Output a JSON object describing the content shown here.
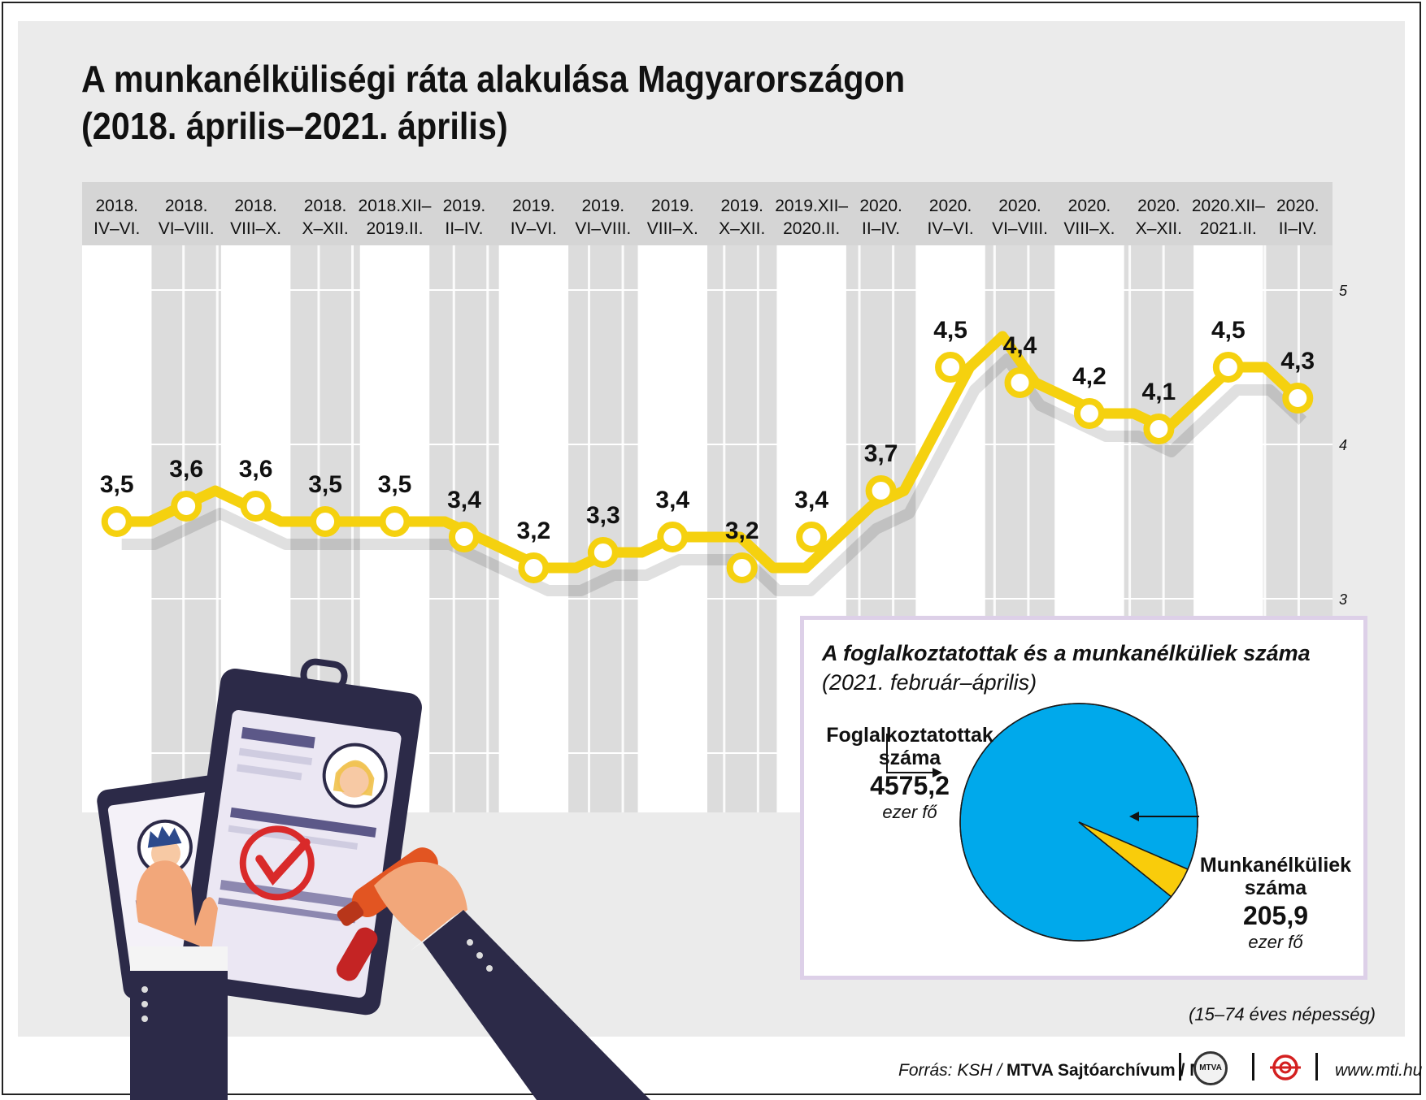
{
  "title": {
    "line1": "A munkanélküliségi ráta alakulása Magyarországon",
    "line2": "(2018. április–2021. április)"
  },
  "chart_data": [
    {
      "type": "line",
      "title": "A munkanélküliségi ráta alakulása Magyarországon (2018. április–2021. április)",
      "categories": [
        [
          "2018.",
          "IV–VI."
        ],
        [
          "2018.",
          "VI–VIII."
        ],
        [
          "2018.",
          "VIII–X."
        ],
        [
          "2018.",
          "X–XII."
        ],
        [
          "2018.XII–",
          "2019.II."
        ],
        [
          "2019.",
          "II–IV."
        ],
        [
          "2019.",
          "IV–VI."
        ],
        [
          "2019.",
          "VI–VIII."
        ],
        [
          "2019.",
          "VIII–X."
        ],
        [
          "2019.",
          "X–XII."
        ],
        [
          "2019.XII–",
          "2020.II."
        ],
        [
          "2020.",
          "II–IV."
        ],
        [
          "2020.",
          "IV–VI."
        ],
        [
          "2020.",
          "VI–VIII."
        ],
        [
          "2020.",
          "VIII–X."
        ],
        [
          "2020.",
          "X–XII."
        ],
        [
          "2020.XII–",
          "2021.II."
        ],
        [
          "2020.",
          "II–IV."
        ]
      ],
      "values": [
        3.5,
        3.6,
        3.6,
        3.5,
        3.5,
        3.4,
        3.2,
        3.3,
        3.4,
        3.2,
        3.4,
        3.7,
        4.5,
        4.4,
        4.2,
        4.1,
        4.5,
        4.3
      ],
      "value_labels": [
        "3,5",
        "3,6",
        "3,6",
        "3,5",
        "3,5",
        "3,4",
        "3,2",
        "3,3",
        "3,4",
        "3,2",
        "3,4",
        "3,7",
        "4,5",
        "4,4",
        "4,2",
        "4,1",
        "4,5",
        "4,3"
      ],
      "monthly_values": [
        3.5,
        3.5,
        3.6,
        3.7,
        3.6,
        3.5,
        3.5,
        3.5,
        3.5,
        3.5,
        3.5,
        3.4,
        3.3,
        3.2,
        3.2,
        3.3,
        3.3,
        3.4,
        3.4,
        3.4,
        3.2,
        3.2,
        3.4,
        3.6,
        3.7,
        4.1,
        4.5,
        4.7,
        4.4,
        4.3,
        4.2,
        4.2,
        4.1,
        4.3,
        4.5,
        4.5,
        4.3
      ],
      "y_ticks": [
        "5",
        "4",
        "3"
      ],
      "ylim": [
        2.3,
        5.1
      ],
      "grid": true,
      "line_color": "#f5d10f",
      "marker_fill": "#ffffff",
      "stripe_color": "#dcdcdc",
      "header_color": "#d5d5d5"
    },
    {
      "type": "pie",
      "title": "A foglalkoztatottak és a munkanélküliek száma",
      "subtitle": "(2021. február–április)",
      "slices": [
        {
          "name": "Foglalkoztatottak száma",
          "value": 4575.2,
          "value_label": "4575,2",
          "unit": "ezer fő",
          "color": "#00a9eb"
        },
        {
          "name": "Munkanélküliek száma",
          "value": 205.9,
          "value_label": "205,9",
          "unit": "ezer fő",
          "color": "#f9cc0b"
        }
      ]
    }
  ],
  "pie_labels": {
    "employed_line1": "Foglalkoztatottak",
    "employed_line2": "száma",
    "employed_value": "4575,2",
    "employed_unit": "ezer fő",
    "unemployed_line1": "Munkanélküliek",
    "unemployed_line2": "száma",
    "unemployed_value": "205,9",
    "unemployed_unit": "ezer fő"
  },
  "note": "(15–74 éves népesség)",
  "footer": {
    "source_prefix": "Forrás: KSH / ",
    "source_bold": "MTVA Sajtóarchívum / MTI",
    "mtva_logo": "MTVA",
    "url": "www.mti.hu"
  },
  "icons": {
    "illustration": "hands-holding-resume-clipboards-illustration",
    "mti": "mti-logo-icon"
  }
}
